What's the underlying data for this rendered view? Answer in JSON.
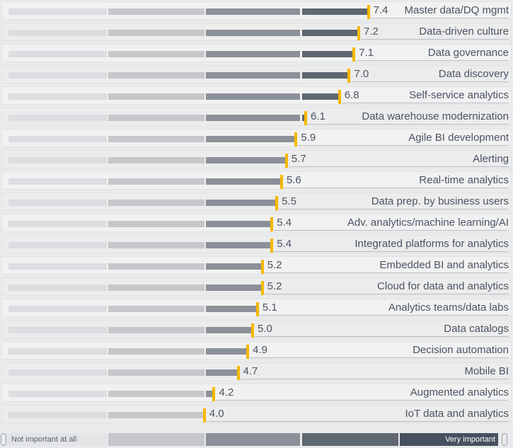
{
  "chart_data": {
    "type": "bar",
    "orientation": "horizontal",
    "title": "",
    "xlabel": "",
    "ylabel": "",
    "xlim": [
      0,
      10
    ],
    "grid": false,
    "categories": [
      "Master data/DQ mgmt",
      "Data-driven culture",
      "Data governance",
      "Data discovery",
      "Self-service analytics",
      "Data warehouse modernization",
      "Agile BI development",
      "Alerting",
      "Real-time analytics",
      "Data prep. by business users",
      "Adv. analytics/machine learning/AI",
      "Integrated platforms for analytics",
      "Embedded BI and analytics",
      "Cloud for data and analytics",
      "Analytics teams/data labs",
      "Data catalogs",
      "Decision automation",
      "Mobile BI",
      "Augmented analytics",
      "IoT data and analytics"
    ],
    "values": [
      7.4,
      7.2,
      7.1,
      7.0,
      6.8,
      6.1,
      5.9,
      5.7,
      5.6,
      5.5,
      5.4,
      5.4,
      5.2,
      5.2,
      5.1,
      5.0,
      4.9,
      4.7,
      4.2,
      4.0
    ],
    "value_labels": [
      "7.4",
      "7.2",
      "7.1",
      "7.0",
      "6.8",
      "6.1",
      "5.9",
      "5.7",
      "5.6",
      "5.5",
      "5.4",
      "5.4",
      "5.2",
      "5.2",
      "5.1",
      "5.0",
      "4.9",
      "4.7",
      "4.2",
      "4.0"
    ],
    "legend": {
      "position": "bottom",
      "scale_low_label": "Not important at all",
      "scale_high_label": "Very important",
      "segments": 5
    },
    "colors": {
      "segment_1": "#dcdde0",
      "segment_2": "#c5c7ca",
      "segment_3": "#8c9098",
      "segment_4": "#5f6770",
      "segment_5": "#46505e",
      "marker": "#f5b800",
      "text": "#4a5563"
    }
  }
}
